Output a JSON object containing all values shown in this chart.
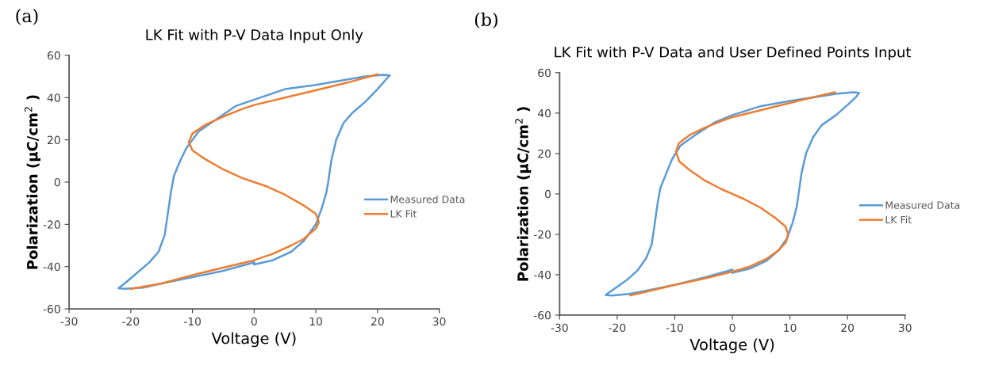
{
  "chart_data": [
    {
      "type": "line",
      "title": "LK Fit with P-V Data Input Only",
      "xlabel": "Voltage (V)",
      "ylabel": "Polarization (μC/cm$^{2}$ )",
      "annotations": [
        "(a)"
      ],
      "xlim": [
        -30,
        30
      ],
      "xticks": [
        -30,
        -20,
        -10,
        0,
        10,
        20,
        30
      ],
      "ylim": [
        -60,
        60
      ],
      "yticks": [
        -60,
        -40,
        -20,
        0,
        20,
        40,
        60
      ],
      "grid": false,
      "legend": "right",
      "marker": "none",
      "line_style": "solid",
      "series": [
        {
          "name": "Measured Data",
          "color": "#5b9bd5",
          "x": [
            0,
            3,
            6,
            8,
            10,
            11,
            11.7,
            12,
            12.5,
            13.3,
            14.5,
            16,
            18,
            20,
            21.5,
            22,
            21,
            18,
            10,
            5,
            0,
            -3,
            -6,
            -9,
            -11,
            -12,
            -13,
            -13.5,
            -14,
            -14.5,
            -15.5,
            -17,
            -19,
            -21,
            -22,
            -21,
            -18,
            -15,
            -10,
            -5,
            0
          ],
          "values": [
            -39,
            -37,
            -33,
            -28,
            -20,
            -12,
            -5,
            0,
            10,
            20,
            28,
            33,
            38,
            44,
            49,
            50.5,
            50.8,
            50,
            46,
            44,
            39,
            36,
            30,
            24,
            16,
            10,
            3,
            -5,
            -15,
            -25,
            -33,
            -38,
            -43,
            -48,
            -50.2,
            -50.5,
            -50,
            -48,
            -45,
            -42,
            -38
          ]
        },
        {
          "name": "LK Fit",
          "color": "#ed7d31",
          "x": [
            -20,
            -15,
            -10,
            -5,
            0,
            3,
            6,
            8,
            10,
            10.5,
            10,
            8,
            5,
            2,
            0,
            -2,
            -5,
            -8,
            -10,
            -10.6,
            -10,
            -8,
            -5,
            -2,
            0,
            5,
            10,
            15,
            20
          ],
          "values": [
            -50.5,
            -48,
            -44,
            -40.5,
            -37,
            -34,
            -30,
            -27,
            -22,
            -19,
            -15,
            -11,
            -6,
            -2,
            0,
            2,
            6,
            11,
            15,
            19,
            23,
            27,
            31,
            34.5,
            36.5,
            40,
            43.5,
            47,
            51
          ]
        }
      ]
    },
    {
      "type": "line",
      "title": "LK Fit with P-V Data and User Defined Points Input",
      "xlabel": "Voltage (V)",
      "ylabel": "Polarization (μC/cm$^{2}$ )",
      "annotations": [
        "(b)"
      ],
      "xlim": [
        -30,
        30
      ],
      "xticks": [
        -30,
        -20,
        -10,
        0,
        10,
        20,
        30
      ],
      "ylim": [
        -60,
        60
      ],
      "yticks": [
        -60,
        -40,
        -20,
        0,
        20,
        40,
        60
      ],
      "grid": false,
      "legend": "right",
      "marker": "none",
      "line_style": "solid",
      "series": [
        {
          "name": "Measured Data",
          "color": "#5b9bd5",
          "x": [
            0,
            3,
            6,
            8,
            9.5,
            10.5,
            11.2,
            11.5,
            12,
            12.8,
            14,
            15.5,
            18,
            20,
            21.5,
            22,
            21,
            18,
            10,
            5,
            0,
            -3,
            -6,
            -9,
            -10.5,
            -11.5,
            -12.5,
            -13,
            -13.5,
            -14,
            -15,
            -16.5,
            -18.5,
            -21,
            -22,
            -21,
            -18,
            -15,
            -10,
            -5,
            0
          ],
          "values": [
            -39,
            -37,
            -33,
            -28,
            -22,
            -14,
            -6,
            0,
            10,
            20,
            28,
            34,
            39,
            44,
            48,
            50,
            50.3,
            49.5,
            46,
            43.5,
            39,
            35.5,
            30,
            24,
            17,
            10,
            3,
            -5,
            -15,
            -25,
            -32,
            -38,
            -43,
            -48,
            -50,
            -50.3,
            -49.5,
            -48,
            -45,
            -41.5,
            -37.5
          ]
        },
        {
          "name": "LK Fit",
          "color": "#ed7d31",
          "x": [
            -17.7,
            -15,
            -10,
            -5,
            0,
            3,
            6,
            8,
            9.3,
            9.7,
            9.2,
            7.5,
            5,
            2,
            0,
            -2,
            -5,
            -7.5,
            -9.2,
            -9.8,
            -9.3,
            -7.5,
            -5,
            -2,
            0,
            5,
            10,
            15,
            17.8
          ],
          "values": [
            -50.2,
            -48.5,
            -45,
            -42,
            -38.5,
            -36,
            -32,
            -28,
            -24,
            -20,
            -16,
            -12,
            -7,
            -2.5,
            0,
            2.5,
            7,
            12,
            16,
            21,
            25,
            29,
            32.5,
            36,
            38,
            41.5,
            45,
            48.5,
            50.3
          ]
        }
      ]
    }
  ]
}
